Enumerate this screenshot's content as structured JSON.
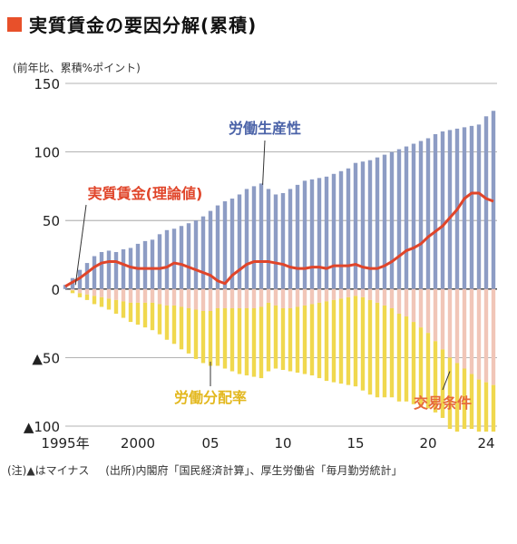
{
  "title": "実質賃金の要因分解(累積)",
  "unit_label": "(前年比、累積%ポイント)",
  "note": {
    "remark": "(注)▲はマイナス",
    "source": "(出所)内閣府「国民経済計算」、厚生労働省「毎月勤労統計」"
  },
  "colors": {
    "accent": "#e8502a",
    "productivity": "#8d9cc4",
    "terms_of_trade": "#f1c6b8",
    "labor_share": "#f0d84e",
    "real_wage": "#e0452a",
    "productivity_label": "#4b63a8",
    "labor_share_label": "#e3b81f",
    "terms_label": "#e66a3c"
  },
  "chart_data": {
    "type": "bar",
    "stacked": true,
    "x_range": [
      1995,
      2024.75
    ],
    "ylim": [
      -100,
      150
    ],
    "y_ticks": [
      150,
      100,
      50,
      0,
      -50,
      -100
    ],
    "y_tick_labels": [
      "150",
      "100",
      "50",
      "0",
      "▲50",
      "▲100"
    ],
    "x_ticks": [
      1995,
      2000,
      2005,
      2010,
      2015,
      2020,
      2024
    ],
    "x_tick_labels": [
      "1995年",
      "2000",
      "05",
      "10",
      "15",
      "20",
      "24"
    ],
    "grid": true,
    "x": [
      1995,
      1995.5,
      1996,
      1996.5,
      1997,
      1997.5,
      1998,
      1998.5,
      1999,
      1999.5,
      2000,
      2000.5,
      2001,
      2001.5,
      2002,
      2002.5,
      2003,
      2003.5,
      2004,
      2004.5,
      2005,
      2005.5,
      2006,
      2006.5,
      2007,
      2007.5,
      2008,
      2008.5,
      2009,
      2009.5,
      2010,
      2010.5,
      2011,
      2011.5,
      2012,
      2012.5,
      2013,
      2013.5,
      2014,
      2014.5,
      2015,
      2015.5,
      2016,
      2016.5,
      2017,
      2017.5,
      2018,
      2018.5,
      2019,
      2019.5,
      2020,
      2020.5,
      2021,
      2021.5,
      2022,
      2022.5,
      2023,
      2023.5,
      2024,
      2024.5
    ],
    "series": [
      {
        "name": "労働生産性",
        "values": [
          3,
          8,
          14,
          19,
          24,
          27,
          28,
          27,
          29,
          30,
          33,
          35,
          36,
          40,
          43,
          44,
          46,
          48,
          50,
          53,
          57,
          61,
          64,
          66,
          69,
          73,
          75,
          77,
          73,
          69,
          70,
          73,
          76,
          79,
          80,
          81,
          82,
          84,
          86,
          88,
          92,
          93,
          94,
          96,
          98,
          100,
          102,
          104,
          106,
          108,
          110,
          113,
          115,
          116,
          117,
          118,
          119,
          120,
          126,
          130
        ]
      },
      {
        "name": "労働分配率",
        "values": [
          0,
          -2,
          -3,
          -4,
          -6,
          -7,
          -8,
          -10,
          -12,
          -14,
          -16,
          -18,
          -20,
          -22,
          -25,
          -28,
          -31,
          -33,
          -36,
          -38,
          -40,
          -42,
          -44,
          -46,
          -48,
          -49,
          -50,
          -52,
          -50,
          -46,
          -45,
          -46,
          -48,
          -50,
          -52,
          -55,
          -58,
          -60,
          -62,
          -64,
          -66,
          -68,
          -69,
          -69,
          -67,
          -65,
          -64,
          -62,
          -60,
          -58,
          -55,
          -52,
          -50,
          -52,
          -50,
          -44,
          -40,
          -38,
          -36,
          -34
        ]
      },
      {
        "name": "交易条件",
        "values": [
          0,
          -1,
          -3,
          -4,
          -5,
          -6,
          -7,
          -8,
          -9,
          -10,
          -10,
          -10,
          -10,
          -11,
          -12,
          -12,
          -13,
          -14,
          -15,
          -16,
          -16,
          -14,
          -14,
          -14,
          -14,
          -14,
          -14,
          -13,
          -10,
          -12,
          -14,
          -14,
          -13,
          -12,
          -11,
          -10,
          -9,
          -8,
          -7,
          -6,
          -5,
          -6,
          -8,
          -10,
          -12,
          -14,
          -18,
          -20,
          -24,
          -28,
          -32,
          -38,
          -44,
          -50,
          -54,
          -58,
          -62,
          -66,
          -68,
          -70
        ]
      }
    ],
    "line_series": {
      "name": "実質賃金(理論値)",
      "values": [
        2,
        5,
        8,
        12,
        16,
        19,
        20,
        20,
        18,
        16,
        15,
        15,
        15,
        15,
        16,
        19,
        18,
        16,
        14,
        12,
        10,
        6,
        4,
        10,
        14,
        18,
        20,
        20,
        20,
        19,
        18,
        16,
        15,
        15,
        16,
        16,
        15,
        17,
        17,
        17,
        18,
        16,
        15,
        15,
        17,
        20,
        24,
        28,
        30,
        33,
        38,
        42,
        46,
        52,
        58,
        66,
        70,
        70,
        66,
        64
      ]
    },
    "annotations": [
      {
        "text": "労働生産性",
        "anchor_x": 2008.6,
        "anchor_y": 76,
        "color_key": "productivity_label"
      },
      {
        "text": "実質賃金(理論値)",
        "anchor_x": 1995.7,
        "anchor_y": 3,
        "color_key": "real_wage"
      },
      {
        "text": "労働分配率",
        "anchor_x": 2005.0,
        "anchor_y": -53,
        "color_key": "labor_share_label"
      },
      {
        "text": "交易条件",
        "anchor_x": 2021.5,
        "anchor_y": -60,
        "color_key": "terms_label"
      }
    ]
  }
}
